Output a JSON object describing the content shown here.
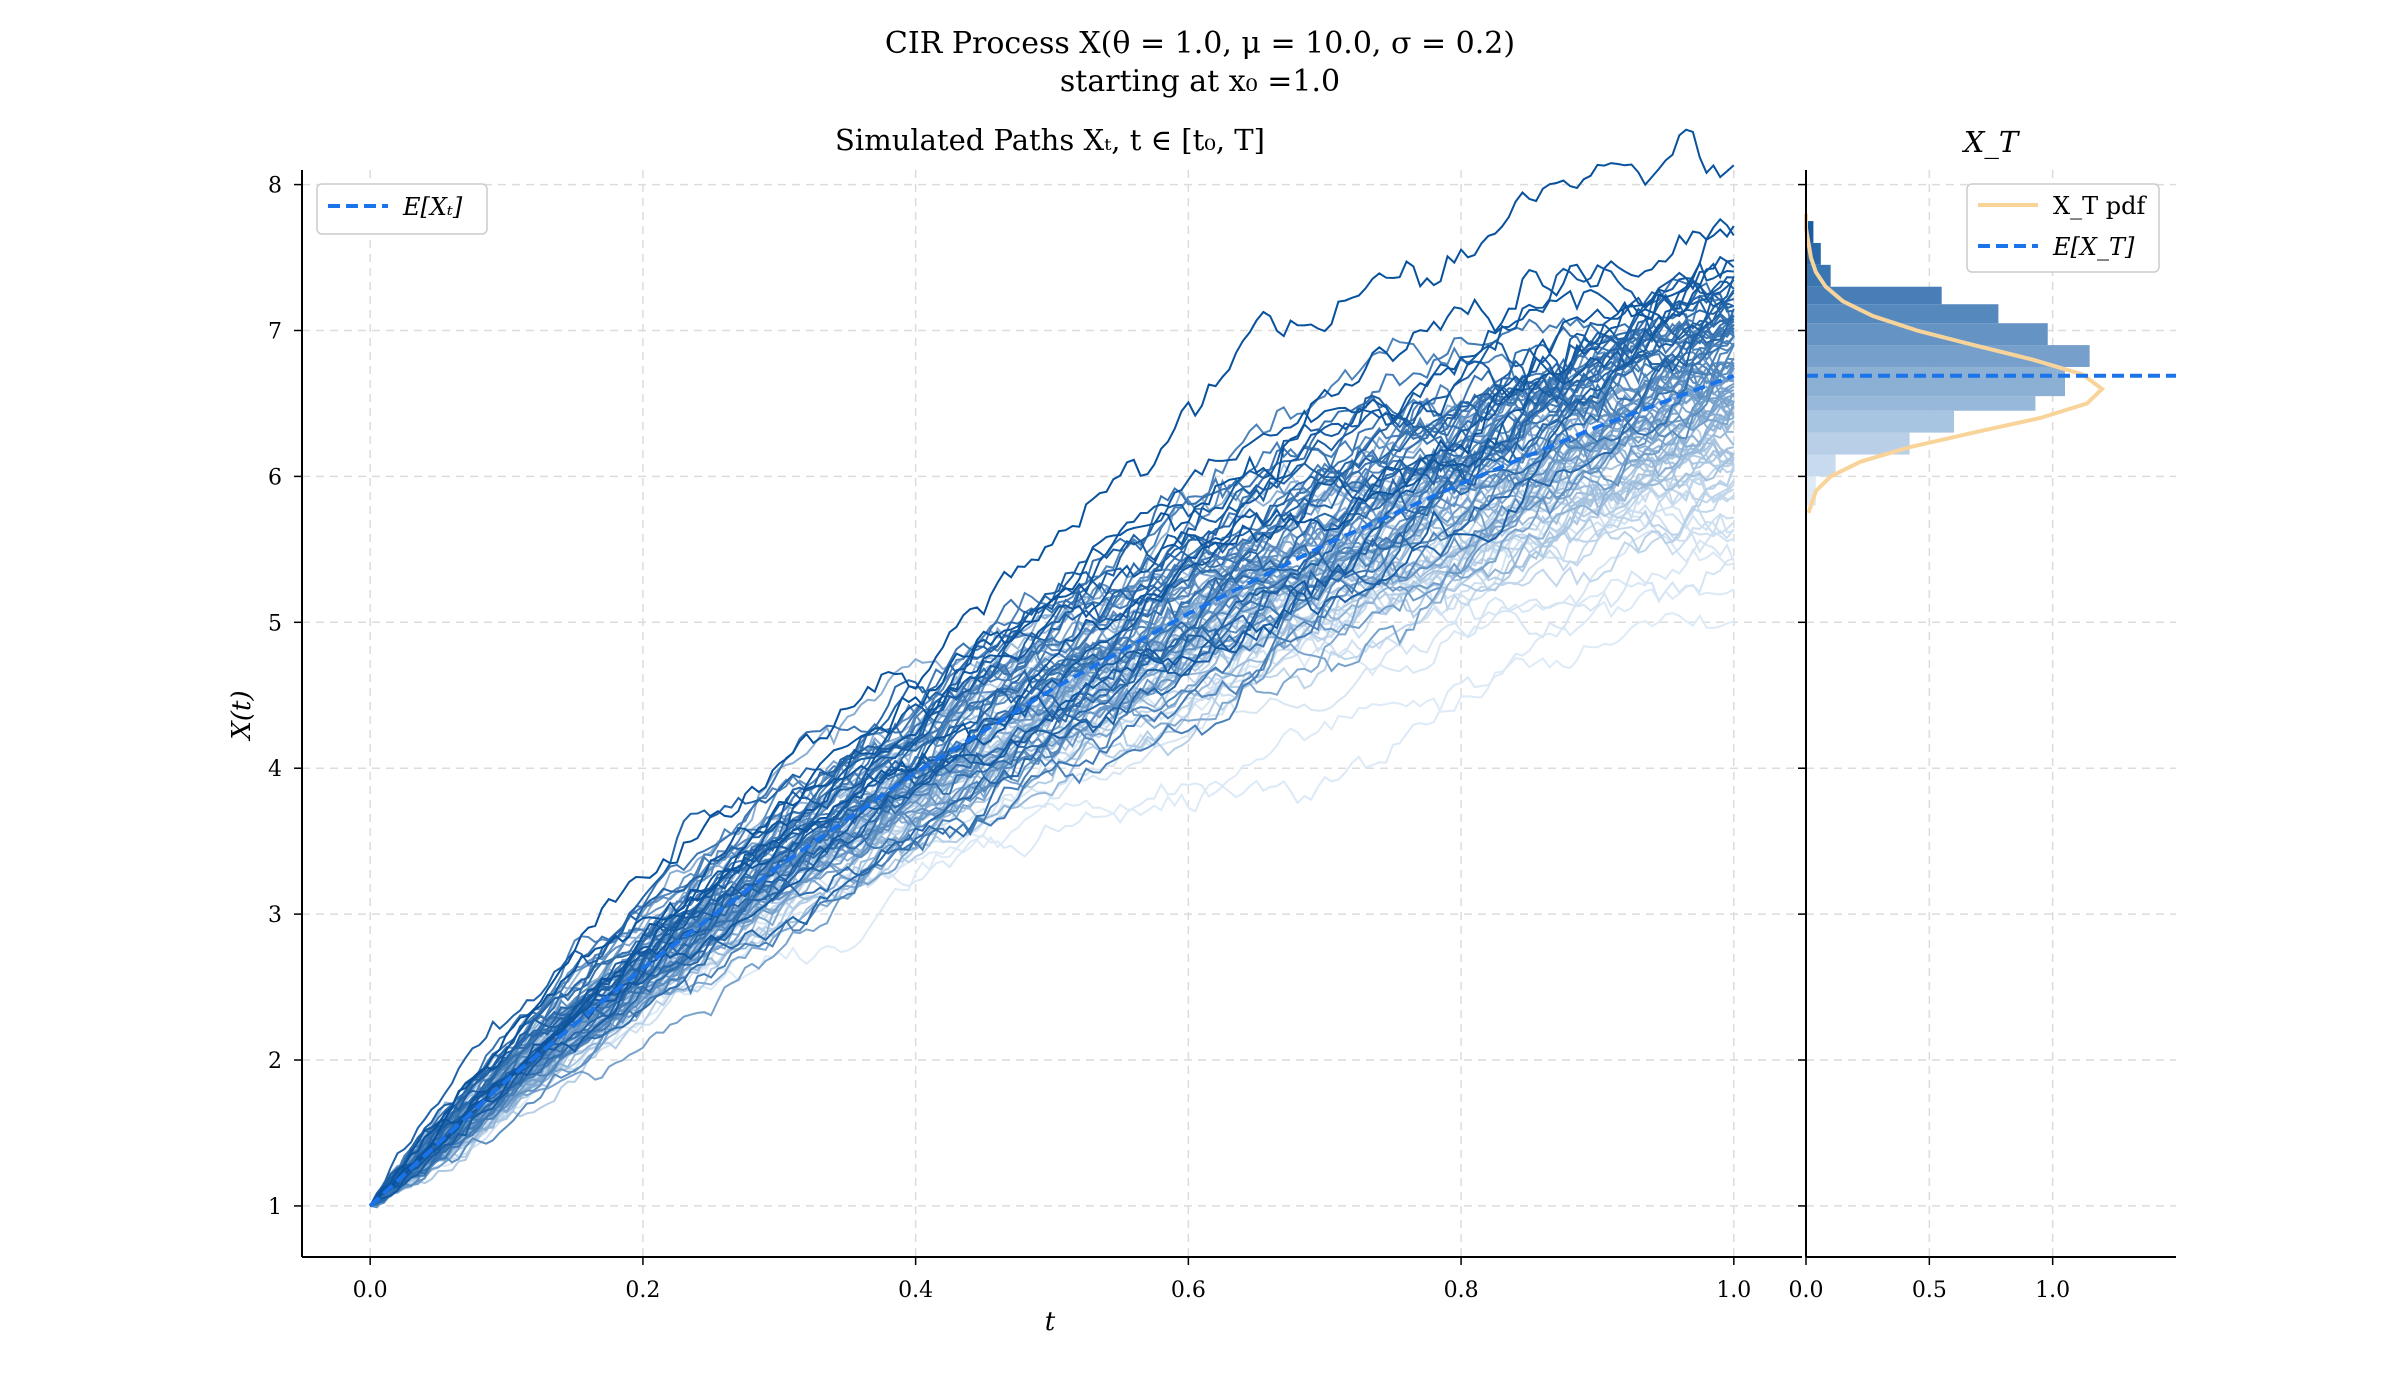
{
  "figure": {
    "title_line1": "CIR Process X(θ = 1.0, μ = 10.0, σ = 0.2)",
    "title_line2": "starting at x₀ =1.0"
  },
  "chart_data": [
    {
      "type": "line",
      "title": "Simulated Paths Xₜ, t ∈ [t₀, T]",
      "xlabel": "t",
      "ylabel": "X(t)",
      "xlim": [
        -0.05,
        1.05
      ],
      "ylim": [
        0.65,
        8.1
      ],
      "x_ticks": [
        "0.0",
        "0.2",
        "0.4",
        "0.6",
        "0.8",
        "1.0"
      ],
      "y_ticks": [
        "1",
        "2",
        "3",
        "4",
        "5",
        "6",
        "7",
        "8"
      ],
      "grid": true,
      "legend": {
        "placement": "top-left",
        "entries": [
          "E[Xₜ]"
        ]
      },
      "process": {
        "theta": 1.0,
        "mu": 10.0,
        "sigma": 0.2,
        "x0": 1.0,
        "t0": 0.0,
        "T": 1.0
      },
      "n_paths": 100,
      "expectation_series": {
        "name": "E[Xₜ]",
        "x": [
          0.0,
          0.1,
          0.2,
          0.3,
          0.4,
          0.5,
          0.6,
          0.7,
          0.8,
          0.9,
          1.0
        ],
        "values": [
          1.0,
          1.86,
          2.63,
          3.33,
          3.97,
          4.54,
          5.06,
          5.53,
          5.95,
          6.34,
          6.69
        ]
      },
      "colors": {
        "expectation": "#1a73e8",
        "paths_light": "#deebf7",
        "paths_dark": "#08519c"
      }
    },
    {
      "type": "bar",
      "orientation": "horizontal",
      "title": "X_T",
      "xlim": [
        0,
        1.5
      ],
      "x_ticks": [
        "0.0",
        "0.5",
        "1.0"
      ],
      "ylim": [
        0.65,
        8.1
      ],
      "grid": true,
      "legend": {
        "placement": "top-right",
        "entries": [
          "X_T pdf",
          "E[X_T]"
        ]
      },
      "bins": [
        {
          "y0": 5.8,
          "y1": 6.0,
          "v": 0.04
        },
        {
          "y0": 6.0,
          "y1": 6.15,
          "v": 0.12
        },
        {
          "y0": 6.15,
          "y1": 6.3,
          "v": 0.42
        },
        {
          "y0": 6.3,
          "y1": 6.45,
          "v": 0.6
        },
        {
          "y0": 6.45,
          "y1": 6.55,
          "v": 0.93
        },
        {
          "y0": 6.55,
          "y1": 6.75,
          "v": 1.05
        },
        {
          "y0": 6.75,
          "y1": 6.9,
          "v": 1.15
        },
        {
          "y0": 6.9,
          "y1": 7.05,
          "v": 0.98
        },
        {
          "y0": 7.05,
          "y1": 7.18,
          "v": 0.78
        },
        {
          "y0": 7.18,
          "y1": 7.3,
          "v": 0.55
        },
        {
          "y0": 7.3,
          "y1": 7.45,
          "v": 0.1
        },
        {
          "y0": 7.45,
          "y1": 7.6,
          "v": 0.06
        },
        {
          "y0": 7.6,
          "y1": 7.75,
          "v": 0.03
        }
      ],
      "pdf_series": {
        "name": "X_T pdf",
        "y": [
          5.75,
          5.9,
          6.0,
          6.1,
          6.2,
          6.3,
          6.4,
          6.5,
          6.6,
          6.7,
          6.8,
          6.9,
          7.0,
          7.1,
          7.2,
          7.3,
          7.4,
          7.5,
          7.6,
          7.7,
          7.8
        ],
        "values": [
          0.01,
          0.04,
          0.1,
          0.22,
          0.42,
          0.68,
          0.95,
          1.14,
          1.2,
          1.12,
          0.92,
          0.68,
          0.45,
          0.27,
          0.15,
          0.08,
          0.04,
          0.02,
          0.01,
          0.0,
          0.0
        ]
      },
      "expectation_value": 6.69,
      "colors": {
        "pdf": "#f8d49a",
        "expectation": "#1a73e8"
      }
    }
  ]
}
